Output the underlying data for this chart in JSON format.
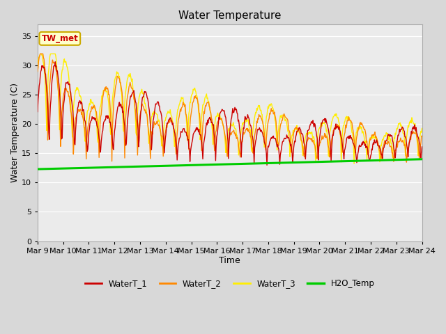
{
  "title": "Water Temperature",
  "xlabel": "Time",
  "ylabel": "Water Temperature (C)",
  "ylim": [
    0,
    37
  ],
  "yticks": [
    0,
    5,
    10,
    15,
    20,
    25,
    30,
    35
  ],
  "x_labels": [
    "Mar 9",
    "Mar 10",
    "Mar 11",
    "Mar 12",
    "Mar 13",
    "Mar 14",
    "Mar 15",
    "Mar 16",
    "Mar 17",
    "Mar 18",
    "Mar 19",
    "Mar 20",
    "Mar 21",
    "Mar 22",
    "Mar 23",
    "Mar 24"
  ],
  "annotation_text": "TW_met",
  "annotation_text_color": "#cc0000",
  "annotation_box_color": "#ffffcc",
  "annotation_box_edge": "#ccaa00",
  "series_colors": {
    "WaterT_1": "#cc0000",
    "WaterT_2": "#ff8800",
    "WaterT_3": "#ffee00",
    "H2O_Temp": "#00cc00"
  },
  "series_linewidths": {
    "WaterT_1": 1.0,
    "WaterT_2": 1.0,
    "WaterT_3": 1.0,
    "H2O_Temp": 2.2
  },
  "background_color": "#d8d8d8",
  "plot_bg_color": "#ebebeb",
  "grid_color": "#ffffff",
  "title_fontsize": 11,
  "axis_label_fontsize": 9,
  "tick_fontsize": 8
}
